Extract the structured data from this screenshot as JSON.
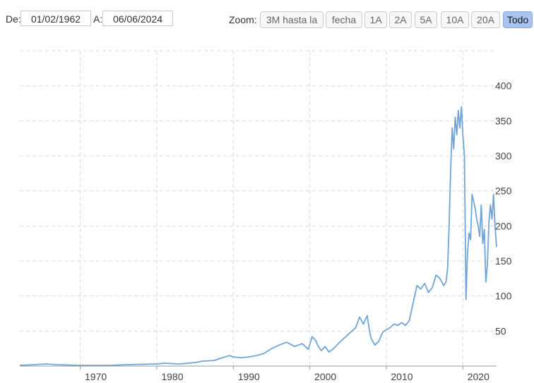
{
  "range": {
    "from_label": "De:",
    "from_value": "01/02/1962",
    "to_label": "A:",
    "to_value": "06/06/2024"
  },
  "zoom": {
    "label": "Zoom:",
    "buttons": [
      {
        "label": "3M hasta la",
        "active": false
      },
      {
        "label": "fecha",
        "active": false
      },
      {
        "label": "1A",
        "active": false
      },
      {
        "label": "2A",
        "active": false
      },
      {
        "label": "5A",
        "active": false
      },
      {
        "label": "10A",
        "active": false
      },
      {
        "label": "20A",
        "active": false
      },
      {
        "label": "Todo",
        "active": true
      }
    ]
  },
  "colors": {
    "line": "#6fa5d8",
    "grid": "#d9d9d9",
    "active_button": "#aac4f0"
  },
  "chart_data": {
    "type": "line",
    "title": "",
    "xlabel": "",
    "ylabel": "",
    "x_ticks": [
      "1970",
      "1980",
      "1990",
      "2000",
      "2010",
      "2020"
    ],
    "y_ticks": [
      "50",
      "100",
      "150",
      "200",
      "250",
      "300",
      "350",
      "400"
    ],
    "xlim": [
      1962.1,
      2024.4
    ],
    "ylim": [
      0,
      450
    ],
    "y_axis_side": "right",
    "grid": true,
    "series": [
      {
        "x": [
          1962.1,
          1964,
          1965.5,
          1967,
          1970,
          1974,
          1976,
          1980,
          1981,
          1983,
          1985,
          1986,
          1987.5,
          1988,
          1989.5,
          1990,
          1991,
          1992,
          1993,
          1994,
          1995,
          1996,
          1997,
          1998,
          1999,
          1999.8,
          2000.3,
          2000.8,
          2001,
          2001.5,
          2002,
          2002.5,
          2003,
          2004,
          2005,
          2006,
          2006.5,
          2007,
          2007.5,
          2007.8,
          2008,
          2008.5,
          2009,
          2009.5,
          2010,
          2010.5,
          2011,
          2011.5,
          2012,
          2012.5,
          2013,
          2013.5,
          2014,
          2014.5,
          2015,
          2015.5,
          2016,
          2016.5,
          2017,
          2017.5,
          2017.8,
          2018,
          2018.2,
          2018.4,
          2018.6,
          2018.8,
          2019,
          2019.2,
          2019.4,
          2019.6,
          2019.8,
          2020,
          2020.2,
          2020.4,
          2020.6,
          2020.8,
          2021,
          2021.2,
          2021.4,
          2021.6,
          2021.8,
          2022,
          2022.2,
          2022.4,
          2022.6,
          2022.8,
          2023,
          2023.2,
          2023.4,
          2023.6,
          2023.8,
          2024,
          2024.2,
          2024.4
        ],
        "y": [
          1,
          2,
          3,
          2,
          1,
          1,
          2,
          3,
          4,
          3,
          5,
          7,
          8,
          10,
          15,
          13,
          12,
          13,
          15,
          18,
          25,
          30,
          34,
          28,
          32,
          24,
          42,
          36,
          30,
          22,
          28,
          20,
          24,
          35,
          45,
          55,
          70,
          60,
          72,
          50,
          40,
          30,
          35,
          48,
          52,
          55,
          60,
          58,
          62,
          58,
          65,
          90,
          115,
          110,
          118,
          105,
          112,
          130,
          125,
          115,
          120,
          140,
          200,
          280,
          340,
          310,
          355,
          330,
          365,
          340,
          370,
          330,
          300,
          95,
          160,
          190,
          180,
          245,
          235,
          225,
          210,
          200,
          185,
          230,
          175,
          195,
          120,
          145,
          205,
          230,
          210,
          245,
          200,
          170
        ]
      }
    ]
  }
}
